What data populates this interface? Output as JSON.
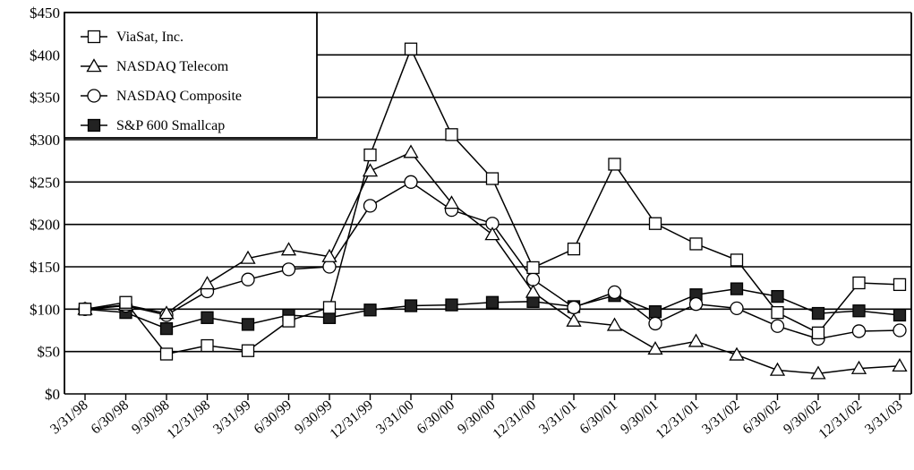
{
  "chart_data": {
    "type": "line",
    "title": "",
    "xlabel": "",
    "ylabel": "",
    "categories": [
      "3/31/98",
      "6/30/98",
      "9/30/98",
      "12/31/98",
      "3/31/99",
      "6/30/99",
      "9/30/99",
      "12/31/99",
      "3/31/00",
      "6/30/00",
      "9/30/00",
      "12/31/00",
      "3/31/01",
      "6/30/01",
      "9/30/01",
      "12/31/01",
      "3/31/02",
      "6/30/02",
      "9/30/02",
      "12/31/02",
      "3/31/03"
    ],
    "ylim": [
      0,
      450
    ],
    "yticks": [
      0,
      50,
      100,
      150,
      200,
      250,
      300,
      350,
      400,
      450
    ],
    "ytick_labels": [
      "$0",
      "$50",
      "$100",
      "$150",
      "$200",
      "$250",
      "$300",
      "$350",
      "$400",
      "$450"
    ],
    "grid": "horizontal",
    "legend_position": "top-left",
    "series": [
      {
        "name": "ViaSat, Inc.",
        "marker": "open-square",
        "values": [
          100,
          108,
          47,
          57,
          51,
          86,
          102,
          282,
          407,
          306,
          254,
          149,
          171,
          271,
          201,
          177,
          158,
          96,
          72,
          131,
          129
        ]
      },
      {
        "name": "NASDAQ Telecom",
        "marker": "open-triangle",
        "values": [
          100,
          105,
          95,
          130,
          160,
          170,
          162,
          263,
          285,
          225,
          188,
          120,
          86,
          81,
          53,
          62,
          46,
          28,
          24,
          30,
          33
        ]
      },
      {
        "name": "NASDAQ Composite",
        "marker": "open-circle",
        "values": [
          100,
          104,
          93,
          121,
          135,
          147,
          150,
          222,
          250,
          217,
          201,
          135,
          102,
          120,
          83,
          106,
          101,
          80,
          65,
          74,
          75
        ]
      },
      {
        "name": "S&P 600 Smallcap",
        "marker": "filled-square",
        "values": [
          100,
          96,
          77,
          90,
          82,
          93,
          90,
          99,
          104,
          105,
          108,
          109,
          103,
          116,
          97,
          117,
          124,
          115,
          95,
          98,
          93
        ]
      }
    ]
  }
}
